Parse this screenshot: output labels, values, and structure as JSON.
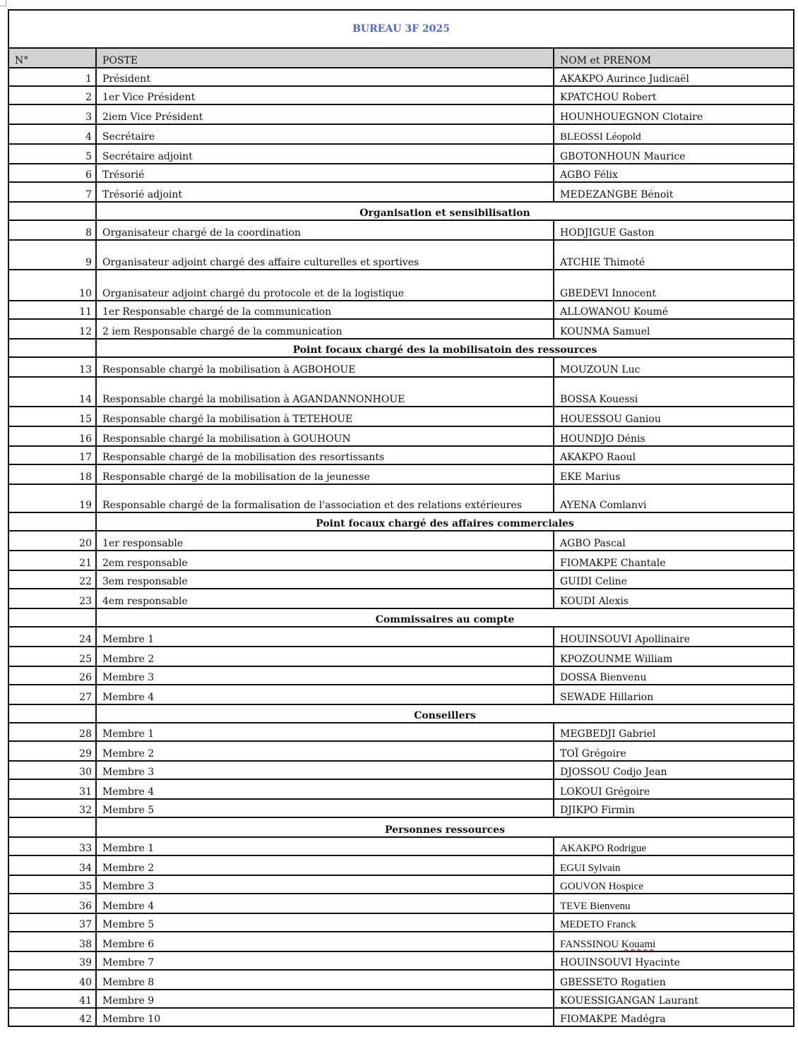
{
  "title": "BUREAU 3F 2025",
  "headers": {
    "num": "N°",
    "poste": "POSTE",
    "nom": "NOM et PRENOM"
  },
  "colors": {
    "title": "#4a6cc0",
    "header_bg": "#d3d3d3",
    "spellcheck": "#dd2222"
  },
  "rows": [
    {
      "n": "1",
      "poste": "Président",
      "nom": "AKAKPO Aurince Judicaël"
    },
    {
      "n": "2",
      "poste": "1er Vice Président",
      "nom": "KPATCHOU Robert"
    },
    {
      "n": "3",
      "poste": "2iem Vice Président",
      "nom": "HOUNHOUEGNON Clotaire"
    },
    {
      "n": "4",
      "poste": "Secrétaire",
      "nom": "BLEOSSI Léopold"
    },
    {
      "n": "5",
      "poste": "Secrétaire adjoint",
      "nom": "GBOTONHOUN Maurice"
    },
    {
      "n": "6",
      "poste": "Trésorié",
      "nom": "AGBO Félix"
    },
    {
      "n": "7",
      "poste": "Trésorié adjoint",
      "nom": "MEDEZANGBE Bénoit"
    },
    {
      "section": "Organisation et sensibilisation"
    },
    {
      "n": "8",
      "poste": "Organisateur chargé de la coordination",
      "nom": "HODJIGUE Gaston"
    },
    {
      "n": "9",
      "poste": "Organisateur adjoint chargé des affaire culturelles et sportives",
      "nom": "ATCHIE Thimoté"
    },
    {
      "n": "10",
      "poste": "Organisateur adjoint chargé du protocole et de la logistique",
      "nom": "GBEDEVI Innocent"
    },
    {
      "n": "11",
      "poste": "1er Responsable chargé de la communication",
      "nom": "ALLOWANOU Koumé"
    },
    {
      "n": "12",
      "poste": "2 iem Responsable chargé de la communication",
      "nom": "KOUNMA Samuel"
    },
    {
      "section": "Point focaux chargé des la mobilisatoin des ressources"
    },
    {
      "n": "13",
      "poste": "Responsable chargé la mobilisation à AGBOHOUE",
      "nom": "MOUZOUN Luc"
    },
    {
      "n": "14",
      "poste": "Responsable chargé la mobilisation à AGANDANNONHOUE",
      "nom": "BOSSA Kouessi"
    },
    {
      "n": "15",
      "poste": "Responsable chargé la mobilisation à TETEHOUE",
      "nom": "HOUESSOU Ganiou"
    },
    {
      "n": "16",
      "poste": "Responsable chargé la mobilisation à GOUHOUN",
      "nom": "HOUNDJO Dénis"
    },
    {
      "n": "17",
      "poste": "Responsable chargé de la mobilisation des resortissants",
      "nom": "AKAKPO Raoul"
    },
    {
      "n": "18",
      "poste": "Responsable chargé de la mobilisation de la jeunesse",
      "nom": "EKE Marius"
    },
    {
      "n": "19",
      "poste": "Responsable chargé de la formalisation de l'association et des relations extérieures",
      "nom": "AYENA Comlanvi"
    },
    {
      "section": "Point focaux chargé des affaires commerciales"
    },
    {
      "n": "20",
      "poste": "1er responsable",
      "nom": "AGBO Pascal"
    },
    {
      "n": "21",
      "poste": "2em responsable",
      "nom": "FIOMAKPE Chantale"
    },
    {
      "n": "22",
      "poste": "3em responsable",
      "nom": "GUIDI Celine"
    },
    {
      "n": "23",
      "poste": "4em responsable",
      "nom": "KOUDI Alexis"
    },
    {
      "section": "Commissaires au compte"
    },
    {
      "n": "24",
      "poste": "Membre 1",
      "nom": "HOUINSOUVI Apollinaire"
    },
    {
      "n": "25",
      "poste": "Membre 2",
      "nom": "KPOZOUNME William"
    },
    {
      "n": "26",
      "poste": "Membre 3",
      "nom": "DOSSA Bienvenu"
    },
    {
      "n": "27",
      "poste": "Membre 4",
      "nom": "SEWADE Hillarion"
    },
    {
      "section": "Conseillers"
    },
    {
      "n": "28",
      "poste": "Membre 1",
      "nom": "MEGBEDJI Gabriel"
    },
    {
      "n": "29",
      "poste": "Membre 2",
      "nom": "TOÏ Grégoire"
    },
    {
      "n": "30",
      "poste": "Membre 3",
      "nom": "DJOSSOU Codjo Jean"
    },
    {
      "n": "31",
      "poste": "Membre 4",
      "nom": "LOKOUI Grégoire"
    },
    {
      "n": "32",
      "poste": "Membre 5",
      "nom": "DJIKPO Firmin"
    },
    {
      "section": "Personnes ressources"
    },
    {
      "n": "33",
      "poste": "Membre 1",
      "nom": "AKAKPO Rodrigue"
    },
    {
      "n": "34",
      "poste": "Membre 2",
      "nom": "EGUI Sylvain"
    },
    {
      "n": "35",
      "poste": "Membre 3",
      "nom": "GOUVON Hospice"
    },
    {
      "n": "36",
      "poste": "Membre 4",
      "nom": "TEVE Bienvenu"
    },
    {
      "n": "37",
      "poste": "Membre 5",
      "nom": "MEDETO Franck"
    },
    {
      "n": "38",
      "poste": "Membre 6",
      "nom": "FANSSINOU",
      "nom_flagged": "Kouami"
    },
    {
      "n": "39",
      "poste": "Membre 7",
      "nom": "HOUINSOUVI Hyacinte"
    },
    {
      "n": "40",
      "poste": "Membre 8",
      "nom": "GBESSETO Rogatien"
    },
    {
      "n": "41",
      "poste": "Membre 9",
      "nom": "KOUESSIGANGAN Laurant"
    },
    {
      "n": "42",
      "poste": "Membre 10",
      "nom": "FIOMAKPE Madégra"
    }
  ]
}
